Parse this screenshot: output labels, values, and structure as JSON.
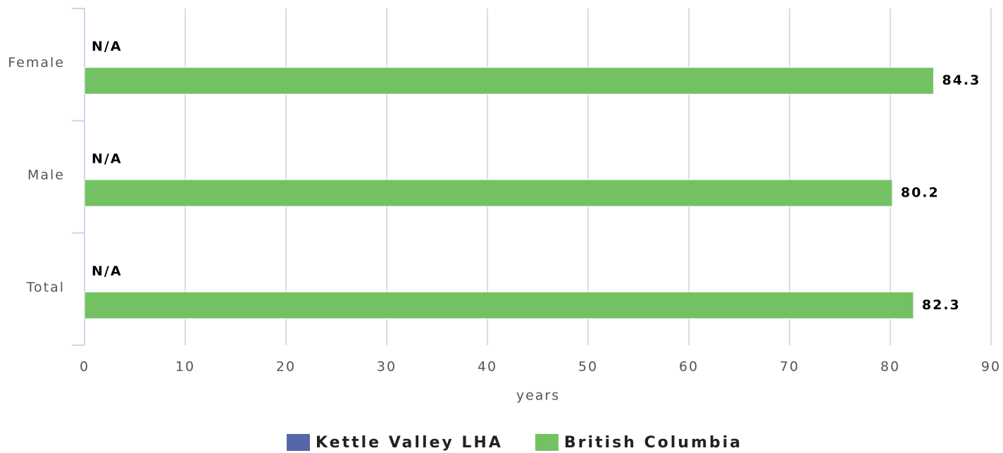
{
  "chart_data": {
    "type": "hbar",
    "categories": [
      "Female",
      "Male",
      "Total"
    ],
    "series": [
      {
        "name": "Kettle Valley LHA",
        "color": "#5567a9",
        "values": [
          null,
          null,
          null
        ],
        "value_labels": [
          "N/A",
          "N/A",
          "N/A"
        ]
      },
      {
        "name": "British Columbia",
        "color": "#74c164",
        "values": [
          84.3,
          80.2,
          82.3
        ]
      }
    ],
    "xlabel": "years",
    "xlim": [
      0,
      90
    ],
    "xticks": [
      0,
      10,
      20,
      30,
      40,
      50,
      60,
      70,
      80,
      90
    ],
    "grid": true,
    "legend": "bottom"
  }
}
